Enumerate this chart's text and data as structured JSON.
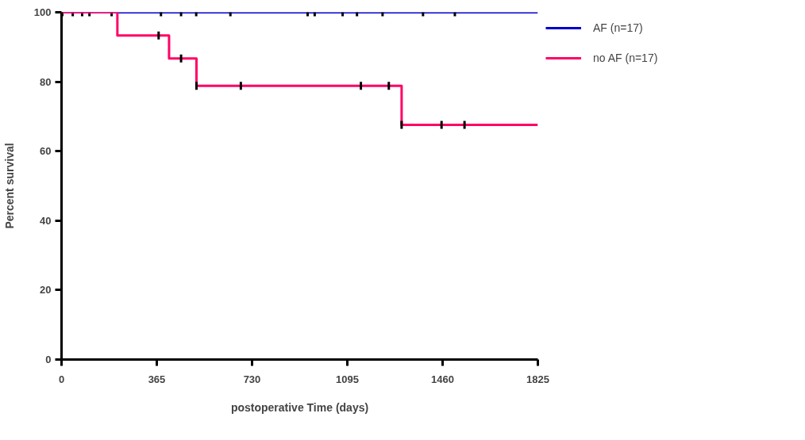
{
  "chart_data": {
    "type": "step",
    "xlabel": "postoperative Time (days)",
    "ylabel": "Percent survival",
    "xlim": [
      0,
      1825
    ],
    "ylim": [
      0,
      100
    ],
    "xticks": [
      0,
      365,
      730,
      1095,
      1460,
      1825
    ],
    "yticks": [
      0,
      20,
      40,
      60,
      80,
      100
    ],
    "grid": false,
    "legend": "top right",
    "series": [
      {
        "name": "AF (n=17)",
        "color": "#0000cc",
        "x": [
          0,
          1825
        ],
        "values": [
          100,
          100
        ]
      },
      {
        "type": "scatter",
        "color": "#000000",
        "x": [
          3,
          43,
          79,
          107,
          192,
          381,
          458,
          516,
          647,
          943,
          970,
          1077,
          1132,
          1230,
          1385,
          1507
        ],
        "values": [
          100,
          100,
          100,
          100,
          100,
          100,
          100,
          100,
          100,
          100,
          100,
          100,
          100,
          100,
          100,
          100
        ]
      },
      {
        "name": "no AF (n=17)",
        "color": "#ff0066",
        "x": [
          0,
          214,
          412,
          517,
          1303,
          1825
        ],
        "values": [
          100,
          93.3,
          86.7,
          78.8,
          67.6,
          67.6
        ]
      },
      {
        "type": "scatter",
        "color": "#000000",
        "x": [
          372,
          458,
          517,
          687,
          1147,
          1254,
          1303,
          1456,
          1544
        ],
        "values": [
          93.3,
          86.7,
          78.8,
          78.8,
          78.8,
          78.8,
          67.6,
          67.6,
          67.6
        ]
      }
    ]
  }
}
